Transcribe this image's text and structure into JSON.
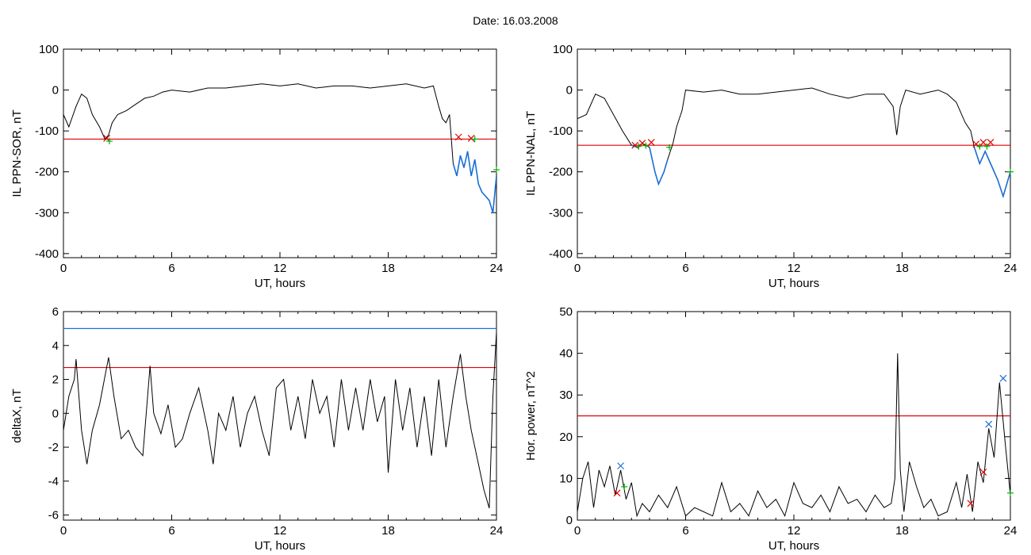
{
  "title": "Date:  16.03.2008",
  "colors": {
    "trace": "#000000",
    "threshold_red": "#e00000",
    "threshold_blue": "#1a6fd6",
    "below_segment": "#1a6fd6",
    "marker_red": "#e00000",
    "marker_green": "#00b000",
    "marker_blue": "#1a6fd6"
  },
  "chart_data": [
    {
      "type": "line",
      "xlabel": "UT, hours",
      "ylabel": "IL PPN-SOR, nT",
      "xlim": [
        0,
        24
      ],
      "ylim": [
        -410,
        100
      ],
      "xticks": [
        0,
        6,
        12,
        18,
        24
      ],
      "yticks": [
        100,
        0,
        -100,
        -200,
        -300,
        -400
      ],
      "threshold": -120,
      "x": [
        0,
        0.3,
        0.7,
        1.0,
        1.3,
        1.6,
        2.0,
        2.3,
        2.5,
        2.7,
        3.0,
        3.5,
        4.0,
        4.5,
        5.0,
        5.5,
        6.0,
        7.0,
        8.0,
        9.0,
        10.0,
        11.0,
        12.0,
        13.0,
        14.0,
        15.0,
        16.0,
        17.0,
        18.0,
        19.0,
        20.0,
        20.5,
        20.8,
        21.0,
        21.2,
        21.4,
        21.6,
        21.8,
        22.0,
        22.2,
        22.4,
        22.6,
        22.8,
        23.0,
        23.2,
        23.4,
        23.6,
        23.8,
        24.0
      ],
      "y": [
        -60,
        -90,
        -40,
        -10,
        -20,
        -60,
        -90,
        -120,
        -110,
        -80,
        -60,
        -50,
        -35,
        -20,
        -15,
        -5,
        0,
        -5,
        5,
        5,
        10,
        15,
        10,
        15,
        5,
        10,
        10,
        5,
        10,
        15,
        5,
        10,
        -40,
        -70,
        -80,
        -60,
        -180,
        -210,
        -160,
        -190,
        -150,
        -210,
        -170,
        -230,
        -250,
        -260,
        -270,
        -300,
        -210
      ],
      "markers": [
        {
          "x": 2.4,
          "y": -118,
          "color": "red"
        },
        {
          "x": 2.55,
          "y": -125,
          "color": "green"
        },
        {
          "x": 21.9,
          "y": -115,
          "color": "red"
        },
        {
          "x": 22.6,
          "y": -118,
          "color": "red"
        },
        {
          "x": 22.8,
          "y": -120,
          "color": "green"
        },
        {
          "x": 24.0,
          "y": -195,
          "color": "green"
        }
      ]
    },
    {
      "type": "line",
      "xlabel": "UT, hours",
      "ylabel": "IL PPN-NAL, nT",
      "xlim": [
        0,
        24
      ],
      "ylim": [
        -410,
        100
      ],
      "xticks": [
        0,
        6,
        12,
        18,
        24
      ],
      "yticks": [
        100,
        0,
        -100,
        -200,
        -300,
        -400
      ],
      "threshold": -135,
      "x": [
        0,
        0.5,
        0.8,
        1.0,
        1.5,
        2.0,
        2.5,
        3.0,
        3.3,
        3.6,
        4.0,
        4.3,
        4.5,
        4.8,
        5.0,
        5.3,
        5.5,
        5.8,
        6.0,
        7.0,
        8.0,
        9.0,
        10.0,
        11.0,
        12.0,
        13.0,
        14.0,
        15.0,
        16.0,
        17.0,
        17.5,
        17.7,
        17.9,
        18.2,
        19.0,
        20.0,
        20.5,
        21.0,
        21.5,
        21.8,
        22.0,
        22.3,
        22.6,
        23.0,
        23.3,
        23.6,
        24.0
      ],
      "y": [
        -70,
        -60,
        -30,
        -10,
        -20,
        -60,
        -100,
        -135,
        -140,
        -130,
        -140,
        -200,
        -230,
        -200,
        -170,
        -130,
        -90,
        -50,
        0,
        -5,
        0,
        -10,
        -10,
        -5,
        0,
        5,
        -10,
        -20,
        -10,
        -10,
        -40,
        -110,
        -40,
        0,
        -10,
        0,
        -10,
        -30,
        -80,
        -100,
        -140,
        -180,
        -150,
        -190,
        -220,
        -260,
        -200
      ],
      "markers": [
        {
          "x": 3.2,
          "y": -135,
          "color": "red"
        },
        {
          "x": 3.4,
          "y": -138,
          "color": "green"
        },
        {
          "x": 3.6,
          "y": -130,
          "color": "red"
        },
        {
          "x": 3.8,
          "y": -136,
          "color": "green"
        },
        {
          "x": 4.1,
          "y": -128,
          "color": "red"
        },
        {
          "x": 5.1,
          "y": -140,
          "color": "green"
        },
        {
          "x": 22.1,
          "y": -132,
          "color": "red"
        },
        {
          "x": 22.3,
          "y": -138,
          "color": "green"
        },
        {
          "x": 22.5,
          "y": -128,
          "color": "red"
        },
        {
          "x": 22.7,
          "y": -138,
          "color": "green"
        },
        {
          "x": 22.9,
          "y": -128,
          "color": "red"
        },
        {
          "x": 24.0,
          "y": -200,
          "color": "green"
        }
      ]
    },
    {
      "type": "line",
      "xlabel": "UT, hours",
      "ylabel": "deltaX, nT",
      "xlim": [
        0,
        24
      ],
      "ylim": [
        -6.3,
        6
      ],
      "xticks": [
        0,
        6,
        12,
        18,
        24
      ],
      "yticks": [
        6,
        4,
        2,
        0,
        -2,
        -4,
        -6
      ],
      "threshold": 2.7,
      "threshold2": 5.0,
      "x": [
        0,
        0.3,
        0.6,
        0.7,
        1.0,
        1.3,
        1.6,
        2.0,
        2.5,
        2.8,
        3.2,
        3.6,
        4.0,
        4.4,
        4.8,
        5.0,
        5.4,
        5.8,
        6.2,
        6.6,
        7.0,
        7.5,
        8.0,
        8.3,
        8.6,
        9.0,
        9.4,
        9.8,
        10.2,
        10.6,
        11.0,
        11.4,
        11.8,
        12.2,
        12.6,
        13.0,
        13.4,
        13.8,
        14.2,
        14.6,
        15.0,
        15.4,
        15.8,
        16.2,
        16.6,
        17.0,
        17.4,
        17.8,
        18.0,
        18.4,
        18.8,
        19.2,
        19.6,
        20.0,
        20.4,
        20.8,
        21.2,
        21.6,
        22.0,
        22.3,
        22.6,
        23.0,
        23.3,
        23.6,
        23.8,
        24.0
      ],
      "y": [
        -1,
        1,
        2,
        3.2,
        -1,
        -3,
        -1,
        0.5,
        3.3,
        1,
        -1.5,
        -1,
        -2,
        -2.5,
        2.8,
        0,
        -1.2,
        0.5,
        -2,
        -1.5,
        0,
        1.5,
        -1,
        -3,
        0,
        -1,
        1,
        -2,
        0,
        1,
        -1,
        -2.5,
        1.5,
        2,
        -1,
        1,
        -1.5,
        2,
        0,
        1,
        -2,
        2,
        -1,
        1.5,
        -1,
        2,
        -0.5,
        1,
        -3.5,
        2,
        -1,
        1.5,
        -2,
        1,
        -2.5,
        2,
        -2,
        1,
        3.5,
        1,
        -1,
        -3,
        -4.5,
        -5.6,
        1,
        4.8
      ],
      "markers": []
    },
    {
      "type": "line",
      "xlabel": "UT, hours",
      "ylabel": "Hor. power, nT^2",
      "xlim": [
        0,
        24
      ],
      "ylim": [
        0,
        50
      ],
      "xticks": [
        0,
        6,
        12,
        18,
        24
      ],
      "yticks": [
        50,
        40,
        30,
        20,
        10,
        0
      ],
      "threshold": 25,
      "x": [
        0,
        0.3,
        0.6,
        0.9,
        1.2,
        1.5,
        1.8,
        2.1,
        2.4,
        2.7,
        3.0,
        3.3,
        3.6,
        4.0,
        4.5,
        5.0,
        5.5,
        6.0,
        6.5,
        7.0,
        7.5,
        8.0,
        8.5,
        9.0,
        9.5,
        10.0,
        10.5,
        11.0,
        11.5,
        12.0,
        12.5,
        13.0,
        13.5,
        14.0,
        14.5,
        15.0,
        15.5,
        16.0,
        16.5,
        17.0,
        17.4,
        17.6,
        17.75,
        17.9,
        18.1,
        18.4,
        18.8,
        19.2,
        19.6,
        20.0,
        20.5,
        21.0,
        21.3,
        21.6,
        21.9,
        22.2,
        22.5,
        22.8,
        23.1,
        23.4,
        23.7,
        24.0
      ],
      "y": [
        2,
        10,
        14,
        3,
        12,
        8,
        13,
        6,
        12,
        5,
        9,
        1,
        4,
        2,
        6,
        3,
        8,
        1,
        3,
        2,
        1,
        9,
        2,
        4,
        1,
        7,
        3,
        5,
        1,
        9,
        4,
        3,
        6,
        2,
        8,
        4,
        5,
        2,
        6,
        3,
        4,
        10,
        40,
        12,
        2,
        14,
        8,
        3,
        5,
        1,
        2,
        9,
        3,
        11,
        2,
        14,
        9,
        22,
        15,
        33,
        19,
        6
      ],
      "markers": [
        {
          "x": 2.2,
          "y": 6.5,
          "color": "red"
        },
        {
          "x": 2.4,
          "y": 13,
          "color": "blue"
        },
        {
          "x": 2.6,
          "y": 8,
          "color": "green"
        },
        {
          "x": 21.8,
          "y": 4,
          "color": "red"
        },
        {
          "x": 22.5,
          "y": 11.5,
          "color": "red"
        },
        {
          "x": 22.8,
          "y": 23,
          "color": "blue"
        },
        {
          "x": 23.6,
          "y": 34,
          "color": "blue"
        },
        {
          "x": 24.0,
          "y": 6.5,
          "color": "green"
        }
      ]
    }
  ]
}
